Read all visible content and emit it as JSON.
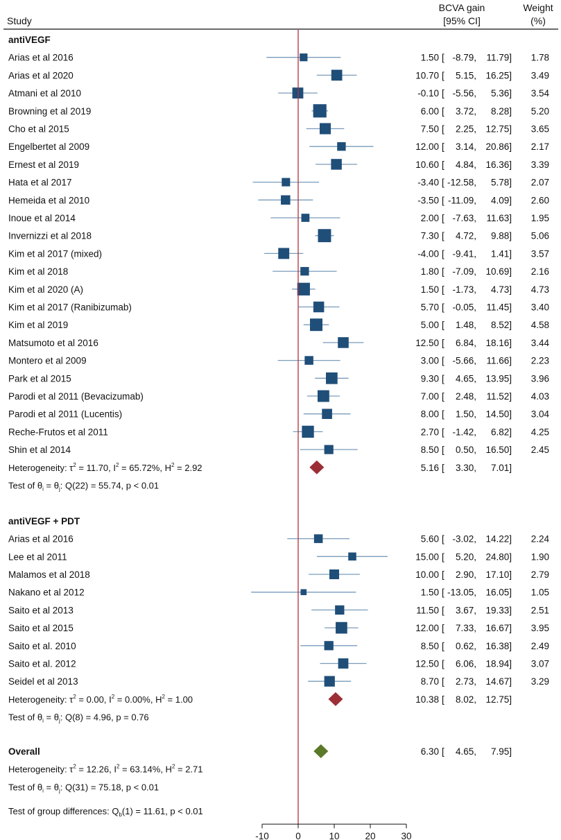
{
  "header": {
    "study": "Study",
    "effect_line1": "BCVA gain",
    "effect_line2": "[95% CI]",
    "weight_line1": "Weight",
    "weight_line2": "(%)"
  },
  "colors": {
    "box": "#1f4e79",
    "ci_line": "#7a9cbb",
    "ref_line": "#b0303c",
    "subgroup_diamond": "#9b2f35",
    "overall_diamond": "#5a7a2a",
    "text": "#111111"
  },
  "chart_data": {
    "type": "forest",
    "xlim": [
      -15,
      30
    ],
    "ticks": [
      -10,
      0,
      10,
      20,
      30
    ],
    "tick_labels": [
      "-10",
      "0",
      "10",
      "20",
      "30"
    ],
    "reference_line": 0,
    "groups": [
      {
        "name": "antiVEGF",
        "studies": [
          {
            "label": "Arias et al 2016",
            "est": 1.5,
            "lo": -8.79,
            "hi": 11.79,
            "est_text": "1.50",
            "lo_text": "-8.79",
            "hi_text": "11.79",
            "weight": 1.78,
            "weight_text": "1.78"
          },
          {
            "label": "Arias et al 2020",
            "est": 10.7,
            "lo": 5.15,
            "hi": 16.25,
            "est_text": "10.70",
            "lo_text": "5.15",
            "hi_text": "16.25",
            "weight": 3.49,
            "weight_text": "3.49"
          },
          {
            "label": "Atmani et al 2010",
            "est": -0.1,
            "lo": -5.56,
            "hi": 5.36,
            "est_text": "-0.10",
            "lo_text": "-5.56",
            "hi_text": "5.36",
            "weight": 3.54,
            "weight_text": "3.54"
          },
          {
            "label": "Browning et al 2019",
            "est": 6.0,
            "lo": 3.72,
            "hi": 8.28,
            "est_text": "6.00",
            "lo_text": "3.72",
            "hi_text": "8.28",
            "weight": 5.2,
            "weight_text": "5.20"
          },
          {
            "label": "Cho et al 2015",
            "est": 7.5,
            "lo": 2.25,
            "hi": 12.75,
            "est_text": "7.50",
            "lo_text": "2.25",
            "hi_text": "12.75",
            "weight": 3.65,
            "weight_text": "3.65"
          },
          {
            "label": "Engelbertet al 2009",
            "est": 12.0,
            "lo": 3.14,
            "hi": 20.86,
            "est_text": "12.00",
            "lo_text": "3.14",
            "hi_text": "20.86",
            "weight": 2.17,
            "weight_text": "2.17"
          },
          {
            "label": "Ernest et al 2019",
            "est": 10.6,
            "lo": 4.84,
            "hi": 16.36,
            "est_text": "10.60",
            "lo_text": "4.84",
            "hi_text": "16.36",
            "weight": 3.39,
            "weight_text": "3.39"
          },
          {
            "label": "Hata et al 2017",
            "est": -3.4,
            "lo": -12.58,
            "hi": 5.78,
            "est_text": "-3.40",
            "lo_text": "-12.58",
            "hi_text": "5.78",
            "weight": 2.07,
            "weight_text": "2.07"
          },
          {
            "label": "Hemeida et al 2010",
            "est": -3.5,
            "lo": -11.09,
            "hi": 4.09,
            "est_text": "-3.50",
            "lo_text": "-11.09",
            "hi_text": "4.09",
            "weight": 2.6,
            "weight_text": "2.60"
          },
          {
            "label": "Inoue et al 2014",
            "est": 2.0,
            "lo": -7.63,
            "hi": 11.63,
            "est_text": "2.00",
            "lo_text": "-7.63",
            "hi_text": "11.63",
            "weight": 1.95,
            "weight_text": "1.95"
          },
          {
            "label": "Invernizzi et al 2018",
            "est": 7.3,
            "lo": 4.72,
            "hi": 9.88,
            "est_text": "7.30",
            "lo_text": "4.72",
            "hi_text": "9.88",
            "weight": 5.06,
            "weight_text": "5.06"
          },
          {
            "label": "Kim et al  2017 (mixed)",
            "est": -4.0,
            "lo": -9.41,
            "hi": 1.41,
            "est_text": "-4.00",
            "lo_text": "-9.41",
            "hi_text": "1.41",
            "weight": 3.57,
            "weight_text": "3.57"
          },
          {
            "label": "Kim et al  2018",
            "est": 1.8,
            "lo": -7.09,
            "hi": 10.69,
            "est_text": "1.80",
            "lo_text": "-7.09",
            "hi_text": "10.69",
            "weight": 2.16,
            "weight_text": "2.16"
          },
          {
            "label": "Kim et al  2020 (A)",
            "est": 1.5,
            "lo": -1.73,
            "hi": 4.73,
            "est_text": "1.50",
            "lo_text": "-1.73",
            "hi_text": "4.73",
            "weight": 4.73,
            "weight_text": "4.73"
          },
          {
            "label": "Kim et al 2017 (Ranibizumab)",
            "est": 5.7,
            "lo": -0.05,
            "hi": 11.45,
            "est_text": "5.70",
            "lo_text": "-0.05",
            "hi_text": "11.45",
            "weight": 3.4,
            "weight_text": "3.40"
          },
          {
            "label": "Kim et al 2019",
            "est": 5.0,
            "lo": 1.48,
            "hi": 8.52,
            "est_text": "5.00",
            "lo_text": "1.48",
            "hi_text": "8.52",
            "weight": 4.58,
            "weight_text": "4.58"
          },
          {
            "label": "Matsumoto et al 2016",
            "est": 12.5,
            "lo": 6.84,
            "hi": 18.16,
            "est_text": "12.50",
            "lo_text": "6.84",
            "hi_text": "18.16",
            "weight": 3.44,
            "weight_text": "3.44"
          },
          {
            "label": "Montero et al 2009",
            "est": 3.0,
            "lo": -5.66,
            "hi": 11.66,
            "est_text": "3.00",
            "lo_text": "-5.66",
            "hi_text": "11.66",
            "weight": 2.23,
            "weight_text": "2.23"
          },
          {
            "label": "Park et al 2015",
            "est": 9.3,
            "lo": 4.65,
            "hi": 13.95,
            "est_text": "9.30",
            "lo_text": "4.65",
            "hi_text": "13.95",
            "weight": 3.96,
            "weight_text": "3.96"
          },
          {
            "label": "Parodi et al 2011  (Bevacizumab)",
            "est": 7.0,
            "lo": 2.48,
            "hi": 11.52,
            "est_text": "7.00",
            "lo_text": "2.48",
            "hi_text": "11.52",
            "weight": 4.03,
            "weight_text": "4.03"
          },
          {
            "label": "Parodi et al 2011 (Lucentis)",
            "est": 8.0,
            "lo": 1.5,
            "hi": 14.5,
            "est_text": "8.00",
            "lo_text": "1.50",
            "hi_text": "14.50",
            "weight": 3.04,
            "weight_text": "3.04"
          },
          {
            "label": "Reche-Frutos et al 2011",
            "est": 2.7,
            "lo": -1.42,
            "hi": 6.82,
            "est_text": "2.70",
            "lo_text": "-1.42",
            "hi_text": "6.82",
            "weight": 4.25,
            "weight_text": "4.25"
          },
          {
            "label": "Shin et al 2014",
            "est": 8.5,
            "lo": 0.5,
            "hi": 16.5,
            "est_text": "8.50",
            "lo_text": "0.50",
            "hi_text": "16.50",
            "weight": 2.45,
            "weight_text": "2.45"
          }
        ],
        "pooled": {
          "est": 5.16,
          "lo": 3.3,
          "hi": 7.01,
          "est_text": "5.16",
          "lo_text": "3.30",
          "hi_text": "7.01",
          "heterogeneity": {
            "tau2": "11.70",
            "I2": "65.72%",
            "H2": "2.92"
          }
        },
        "test": {
          "df": "22",
          "Q": "55.74",
          "p": "p < 0.01"
        }
      },
      {
        "name": "antiVEGF + PDT",
        "studies": [
          {
            "label": "Arias et al 2016",
            "est": 5.6,
            "lo": -3.02,
            "hi": 14.22,
            "est_text": "5.60",
            "lo_text": "-3.02",
            "hi_text": "14.22",
            "weight": 2.24,
            "weight_text": "2.24"
          },
          {
            "label": "Lee et al 2011",
            "est": 15.0,
            "lo": 5.2,
            "hi": 24.8,
            "est_text": "15.00",
            "lo_text": "5.20",
            "hi_text": "24.80",
            "weight": 1.9,
            "weight_text": "1.90"
          },
          {
            "label": "Malamos et al 2018",
            "est": 10.0,
            "lo": 2.9,
            "hi": 17.1,
            "est_text": "10.00",
            "lo_text": "2.90",
            "hi_text": "17.10",
            "weight": 2.79,
            "weight_text": "2.79"
          },
          {
            "label": "Nakano et al  2012",
            "est": 1.5,
            "lo": -13.05,
            "hi": 16.05,
            "est_text": "1.50",
            "lo_text": "-13.05",
            "hi_text": "16.05",
            "weight": 1.05,
            "weight_text": "1.05"
          },
          {
            "label": "Saito et al 2013",
            "est": 11.5,
            "lo": 3.67,
            "hi": 19.33,
            "est_text": "11.50",
            "lo_text": "3.67",
            "hi_text": "19.33",
            "weight": 2.51,
            "weight_text": "2.51"
          },
          {
            "label": "Saito et al 2015",
            "est": 12.0,
            "lo": 7.33,
            "hi": 16.67,
            "est_text": "12.00",
            "lo_text": "7.33",
            "hi_text": "16.67",
            "weight": 3.95,
            "weight_text": "3.95"
          },
          {
            "label": "Saito et al. 2010",
            "est": 8.5,
            "lo": 0.62,
            "hi": 16.38,
            "est_text": "8.50",
            "lo_text": "0.62",
            "hi_text": "16.38",
            "weight": 2.49,
            "weight_text": "2.49"
          },
          {
            "label": "Saito et al. 2012",
            "est": 12.5,
            "lo": 6.06,
            "hi": 18.94,
            "est_text": "12.50",
            "lo_text": "6.06",
            "hi_text": "18.94",
            "weight": 3.07,
            "weight_text": "3.07"
          },
          {
            "label": "Seidel et al 2013",
            "est": 8.7,
            "lo": 2.73,
            "hi": 14.67,
            "est_text": "8.70",
            "lo_text": "2.73",
            "hi_text": "14.67",
            "weight": 3.29,
            "weight_text": "3.29"
          }
        ],
        "pooled": {
          "est": 10.38,
          "lo": 8.02,
          "hi": 12.75,
          "est_text": "10.38",
          "lo_text": "8.02",
          "hi_text": "12.75",
          "heterogeneity": {
            "tau2": "0.00",
            "I2": "0.00%",
            "H2": "1.00"
          }
        },
        "test": {
          "df": "8",
          "Q": "4.96",
          "p": "p = 0.76"
        }
      }
    ],
    "overall": {
      "label": "Overall",
      "est": 6.3,
      "lo": 4.65,
      "hi": 7.95,
      "est_text": "6.30",
      "lo_text": "4.65",
      "hi_text": "7.95",
      "heterogeneity": {
        "tau2": "12.26",
        "I2": "63.14%",
        "H2": "2.71"
      },
      "test": {
        "df": "31",
        "Q": "75.18",
        "p": "p < 0.01"
      },
      "group_diff": {
        "df": "1",
        "Q": "11.61",
        "p": "p < 0.01"
      }
    }
  }
}
